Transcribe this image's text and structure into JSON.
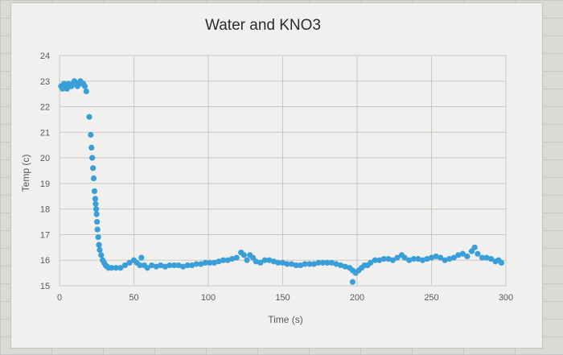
{
  "chart_data": {
    "type": "scatter",
    "title": "Water and KNO3",
    "xlabel": "Time (s)",
    "ylabel": "Temp (c)",
    "xlim": [
      0,
      300
    ],
    "ylim": [
      15,
      24
    ],
    "xticks": [
      "0",
      "50",
      "100",
      "150",
      "200",
      "250",
      "300"
    ],
    "yticks": [
      "15",
      "16",
      "17",
      "18",
      "19",
      "20",
      "21",
      "22",
      "23",
      "24"
    ],
    "grid": true,
    "legend": "none",
    "series_color": "#3a9fd8",
    "points": [
      [
        1,
        22.8
      ],
      [
        2,
        22.7
      ],
      [
        3,
        22.9
      ],
      [
        4,
        22.8
      ],
      [
        5,
        22.7
      ],
      [
        6,
        22.9
      ],
      [
        7,
        22.8
      ],
      [
        8,
        22.8
      ],
      [
        9,
        22.9
      ],
      [
        10,
        23.0
      ],
      [
        11,
        22.9
      ],
      [
        12,
        22.8
      ],
      [
        13,
        22.9
      ],
      [
        14,
        23.0
      ],
      [
        15,
        22.9
      ],
      [
        16,
        22.9
      ],
      [
        17,
        22.8
      ],
      [
        18,
        22.6
      ],
      [
        20,
        21.6
      ],
      [
        21,
        20.9
      ],
      [
        21.5,
        20.4
      ],
      [
        22,
        20.0
      ],
      [
        22.5,
        19.6
      ],
      [
        23,
        19.2
      ],
      [
        23.5,
        18.7
      ],
      [
        24,
        18.4
      ],
      [
        24.3,
        18.2
      ],
      [
        24.6,
        18.0
      ],
      [
        24.9,
        17.8
      ],
      [
        25.2,
        17.5
      ],
      [
        25.5,
        17.2
      ],
      [
        26,
        16.9
      ],
      [
        26.5,
        16.6
      ],
      [
        27,
        16.4
      ],
      [
        28,
        16.2
      ],
      [
        29,
        16.0
      ],
      [
        30,
        15.9
      ],
      [
        31,
        15.8
      ],
      [
        32,
        15.75
      ],
      [
        33,
        15.7
      ],
      [
        35,
        15.7
      ],
      [
        38,
        15.7
      ],
      [
        41,
        15.7
      ],
      [
        44,
        15.8
      ],
      [
        47,
        15.9
      ],
      [
        50,
        16.0
      ],
      [
        52,
        15.9
      ],
      [
        54,
        15.8
      ],
      [
        55,
        16.1
      ],
      [
        57,
        15.8
      ],
      [
        59,
        15.7
      ],
      [
        62,
        15.8
      ],
      [
        65,
        15.75
      ],
      [
        68,
        15.8
      ],
      [
        71,
        15.75
      ],
      [
        74,
        15.8
      ],
      [
        77,
        15.8
      ],
      [
        80,
        15.8
      ],
      [
        83,
        15.75
      ],
      [
        86,
        15.8
      ],
      [
        89,
        15.8
      ],
      [
        92,
        15.85
      ],
      [
        95,
        15.85
      ],
      [
        98,
        15.9
      ],
      [
        101,
        15.9
      ],
      [
        104,
        15.9
      ],
      [
        107,
        15.95
      ],
      [
        110,
        16.0
      ],
      [
        113,
        16.0
      ],
      [
        116,
        16.05
      ],
      [
        119,
        16.1
      ],
      [
        122,
        16.3
      ],
      [
        124,
        16.2
      ],
      [
        126,
        16.0
      ],
      [
        128,
        16.2
      ],
      [
        130,
        16.1
      ],
      [
        132,
        15.95
      ],
      [
        135,
        15.9
      ],
      [
        138,
        16.0
      ],
      [
        141,
        16.0
      ],
      [
        144,
        15.95
      ],
      [
        147,
        15.9
      ],
      [
        150,
        15.9
      ],
      [
        153,
        15.85
      ],
      [
        156,
        15.85
      ],
      [
        159,
        15.8
      ],
      [
        162,
        15.8
      ],
      [
        165,
        15.85
      ],
      [
        168,
        15.85
      ],
      [
        171,
        15.85
      ],
      [
        174,
        15.9
      ],
      [
        177,
        15.9
      ],
      [
        180,
        15.9
      ],
      [
        183,
        15.9
      ],
      [
        186,
        15.85
      ],
      [
        189,
        15.8
      ],
      [
        192,
        15.75
      ],
      [
        195,
        15.7
      ],
      [
        197,
        15.6
      ],
      [
        199,
        15.5
      ],
      [
        201,
        15.6
      ],
      [
        203,
        15.7
      ],
      [
        205,
        15.8
      ],
      [
        207,
        15.8
      ],
      [
        209,
        15.9
      ],
      [
        212,
        16.0
      ],
      [
        215,
        16.0
      ],
      [
        218,
        16.05
      ],
      [
        221,
        16.05
      ],
      [
        224,
        16.0
      ],
      [
        227,
        16.1
      ],
      [
        230,
        16.2
      ],
      [
        232,
        16.1
      ],
      [
        235,
        16.0
      ],
      [
        238,
        16.05
      ],
      [
        241,
        16.05
      ],
      [
        244,
        16.0
      ],
      [
        247,
        16.05
      ],
      [
        250,
        16.1
      ],
      [
        253,
        16.15
      ],
      [
        256,
        16.1
      ],
      [
        259,
        16.0
      ],
      [
        262,
        16.05
      ],
      [
        265,
        16.1
      ],
      [
        268,
        16.2
      ],
      [
        271,
        16.25
      ],
      [
        274,
        16.15
      ],
      [
        277,
        16.35
      ],
      [
        279,
        16.5
      ],
      [
        281,
        16.25
      ],
      [
        284,
        16.1
      ],
      [
        287,
        16.1
      ],
      [
        290,
        16.05
      ],
      [
        293,
        15.95
      ],
      [
        295,
        16.0
      ],
      [
        297,
        15.9
      ],
      [
        197,
        15.15
      ]
    ]
  }
}
